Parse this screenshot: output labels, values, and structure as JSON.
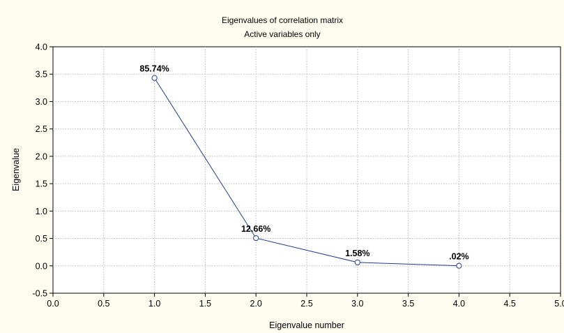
{
  "chart_data": {
    "type": "line",
    "title": "Eigenvalues of correlation matrix",
    "subtitle": "Active variables only",
    "xlabel": "Eigenvalue number",
    "ylabel": "Eigenvalue",
    "xlim": [
      0.0,
      5.0
    ],
    "ylim": [
      -0.5,
      4.0
    ],
    "xticks": [
      "0.0",
      "0.5",
      "1.0",
      "1.5",
      "2.0",
      "2.5",
      "3.0",
      "3.5",
      "4.0",
      "4.5",
      "5.0"
    ],
    "yticks": [
      "-0.5",
      "0.0",
      "0.5",
      "1.0",
      "1.5",
      "2.0",
      "2.5",
      "3.0",
      "3.5",
      "4.0"
    ],
    "grid": true,
    "series": [
      {
        "x": [
          1,
          2,
          3,
          4
        ],
        "y": [
          3.43,
          0.506,
          0.063,
          0.001
        ],
        "labels": [
          "85.74%",
          "12.66%",
          "1.58%",
          ".02%"
        ]
      }
    ],
    "colors": {
      "line": "#1f3c88",
      "marker_fill": "#ffffff",
      "background": "#fdfdf0",
      "plot_background": "#ffffff"
    }
  }
}
